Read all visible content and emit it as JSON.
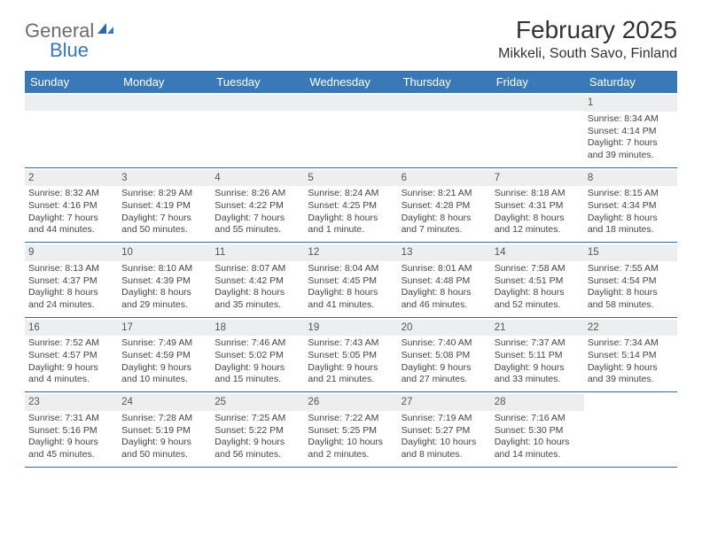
{
  "colors": {
    "accent": "#3a79b7",
    "rule": "#2d6aa8",
    "band": "#eceeef",
    "text": "#333333",
    "logo_gray": "#6c6c6c"
  },
  "logo": {
    "text1": "General",
    "text2": "Blue"
  },
  "title": "February 2025",
  "location": "Mikkeli, South Savo, Finland",
  "day_headers": [
    "Sunday",
    "Monday",
    "Tuesday",
    "Wednesday",
    "Thursday",
    "Friday",
    "Saturday"
  ],
  "weeks": [
    [
      null,
      null,
      null,
      null,
      null,
      null,
      {
        "n": "1",
        "sunrise": "Sunrise: 8:34 AM",
        "sunset": "Sunset: 4:14 PM",
        "day1": "Daylight: 7 hours",
        "day2": "and 39 minutes."
      }
    ],
    [
      {
        "n": "2",
        "sunrise": "Sunrise: 8:32 AM",
        "sunset": "Sunset: 4:16 PM",
        "day1": "Daylight: 7 hours",
        "day2": "and 44 minutes."
      },
      {
        "n": "3",
        "sunrise": "Sunrise: 8:29 AM",
        "sunset": "Sunset: 4:19 PM",
        "day1": "Daylight: 7 hours",
        "day2": "and 50 minutes."
      },
      {
        "n": "4",
        "sunrise": "Sunrise: 8:26 AM",
        "sunset": "Sunset: 4:22 PM",
        "day1": "Daylight: 7 hours",
        "day2": "and 55 minutes."
      },
      {
        "n": "5",
        "sunrise": "Sunrise: 8:24 AM",
        "sunset": "Sunset: 4:25 PM",
        "day1": "Daylight: 8 hours",
        "day2": "and 1 minute."
      },
      {
        "n": "6",
        "sunrise": "Sunrise: 8:21 AM",
        "sunset": "Sunset: 4:28 PM",
        "day1": "Daylight: 8 hours",
        "day2": "and 7 minutes."
      },
      {
        "n": "7",
        "sunrise": "Sunrise: 8:18 AM",
        "sunset": "Sunset: 4:31 PM",
        "day1": "Daylight: 8 hours",
        "day2": "and 12 minutes."
      },
      {
        "n": "8",
        "sunrise": "Sunrise: 8:15 AM",
        "sunset": "Sunset: 4:34 PM",
        "day1": "Daylight: 8 hours",
        "day2": "and 18 minutes."
      }
    ],
    [
      {
        "n": "9",
        "sunrise": "Sunrise: 8:13 AM",
        "sunset": "Sunset: 4:37 PM",
        "day1": "Daylight: 8 hours",
        "day2": "and 24 minutes."
      },
      {
        "n": "10",
        "sunrise": "Sunrise: 8:10 AM",
        "sunset": "Sunset: 4:39 PM",
        "day1": "Daylight: 8 hours",
        "day2": "and 29 minutes."
      },
      {
        "n": "11",
        "sunrise": "Sunrise: 8:07 AM",
        "sunset": "Sunset: 4:42 PM",
        "day1": "Daylight: 8 hours",
        "day2": "and 35 minutes."
      },
      {
        "n": "12",
        "sunrise": "Sunrise: 8:04 AM",
        "sunset": "Sunset: 4:45 PM",
        "day1": "Daylight: 8 hours",
        "day2": "and 41 minutes."
      },
      {
        "n": "13",
        "sunrise": "Sunrise: 8:01 AM",
        "sunset": "Sunset: 4:48 PM",
        "day1": "Daylight: 8 hours",
        "day2": "and 46 minutes."
      },
      {
        "n": "14",
        "sunrise": "Sunrise: 7:58 AM",
        "sunset": "Sunset: 4:51 PM",
        "day1": "Daylight: 8 hours",
        "day2": "and 52 minutes."
      },
      {
        "n": "15",
        "sunrise": "Sunrise: 7:55 AM",
        "sunset": "Sunset: 4:54 PM",
        "day1": "Daylight: 8 hours",
        "day2": "and 58 minutes."
      }
    ],
    [
      {
        "n": "16",
        "sunrise": "Sunrise: 7:52 AM",
        "sunset": "Sunset: 4:57 PM",
        "day1": "Daylight: 9 hours",
        "day2": "and 4 minutes."
      },
      {
        "n": "17",
        "sunrise": "Sunrise: 7:49 AM",
        "sunset": "Sunset: 4:59 PM",
        "day1": "Daylight: 9 hours",
        "day2": "and 10 minutes."
      },
      {
        "n": "18",
        "sunrise": "Sunrise: 7:46 AM",
        "sunset": "Sunset: 5:02 PM",
        "day1": "Daylight: 9 hours",
        "day2": "and 15 minutes."
      },
      {
        "n": "19",
        "sunrise": "Sunrise: 7:43 AM",
        "sunset": "Sunset: 5:05 PM",
        "day1": "Daylight: 9 hours",
        "day2": "and 21 minutes."
      },
      {
        "n": "20",
        "sunrise": "Sunrise: 7:40 AM",
        "sunset": "Sunset: 5:08 PM",
        "day1": "Daylight: 9 hours",
        "day2": "and 27 minutes."
      },
      {
        "n": "21",
        "sunrise": "Sunrise: 7:37 AM",
        "sunset": "Sunset: 5:11 PM",
        "day1": "Daylight: 9 hours",
        "day2": "and 33 minutes."
      },
      {
        "n": "22",
        "sunrise": "Sunrise: 7:34 AM",
        "sunset": "Sunset: 5:14 PM",
        "day1": "Daylight: 9 hours",
        "day2": "and 39 minutes."
      }
    ],
    [
      {
        "n": "23",
        "sunrise": "Sunrise: 7:31 AM",
        "sunset": "Sunset: 5:16 PM",
        "day1": "Daylight: 9 hours",
        "day2": "and 45 minutes."
      },
      {
        "n": "24",
        "sunrise": "Sunrise: 7:28 AM",
        "sunset": "Sunset: 5:19 PM",
        "day1": "Daylight: 9 hours",
        "day2": "and 50 minutes."
      },
      {
        "n": "25",
        "sunrise": "Sunrise: 7:25 AM",
        "sunset": "Sunset: 5:22 PM",
        "day1": "Daylight: 9 hours",
        "day2": "and 56 minutes."
      },
      {
        "n": "26",
        "sunrise": "Sunrise: 7:22 AM",
        "sunset": "Sunset: 5:25 PM",
        "day1": "Daylight: 10 hours",
        "day2": "and 2 minutes."
      },
      {
        "n": "27",
        "sunrise": "Sunrise: 7:19 AM",
        "sunset": "Sunset: 5:27 PM",
        "day1": "Daylight: 10 hours",
        "day2": "and 8 minutes."
      },
      {
        "n": "28",
        "sunrise": "Sunrise: 7:16 AM",
        "sunset": "Sunset: 5:30 PM",
        "day1": "Daylight: 10 hours",
        "day2": "and 14 minutes."
      },
      null
    ]
  ]
}
